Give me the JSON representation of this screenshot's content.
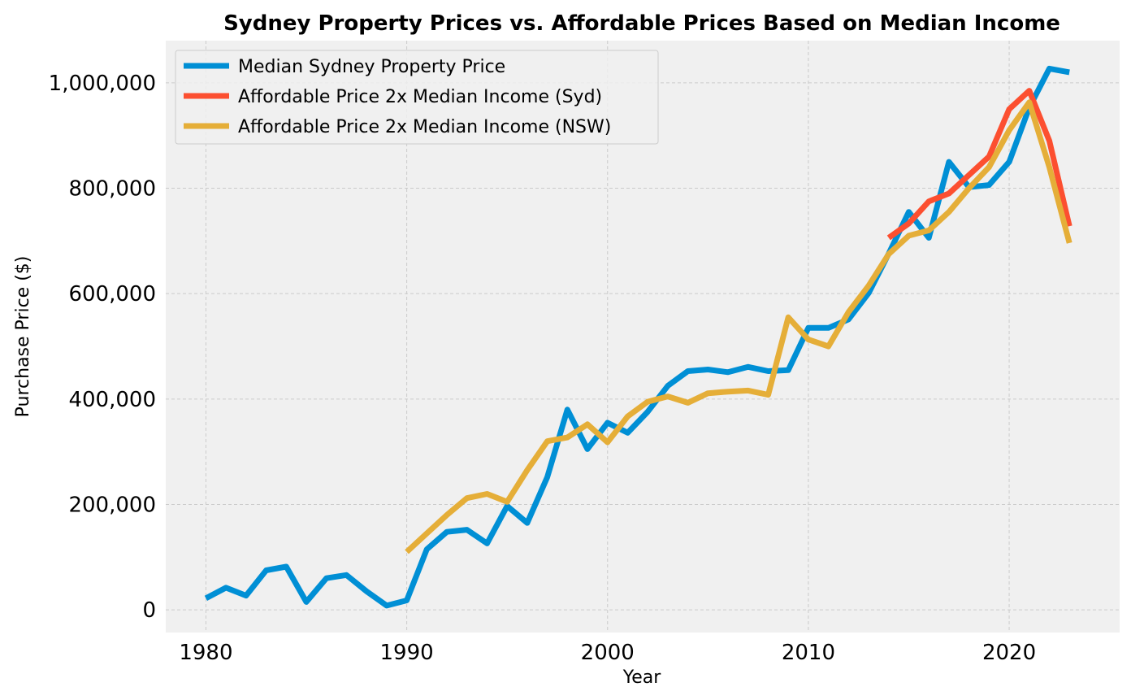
{
  "chart_data": {
    "type": "line",
    "title": "Sydney Property Prices vs. Affordable Prices Based on Median Income",
    "xlabel": "Year",
    "ylabel": "Purchase Price ($)",
    "xlim": [
      1978,
      2025.5
    ],
    "ylim": [
      -43000,
      1080000
    ],
    "xticks": [
      1980,
      1990,
      2000,
      2010,
      2020
    ],
    "xtick_labels": [
      "1980",
      "1990",
      "2000",
      "2010",
      "2020"
    ],
    "yticks": [
      0,
      200000,
      400000,
      600000,
      800000,
      1000000
    ],
    "ytick_labels": [
      "0",
      "200,000",
      "400,000",
      "600,000",
      "800,000",
      "1,000,000"
    ],
    "grid": true,
    "legend_position": "upper-left",
    "background_color": "#f0f0f0",
    "series": [
      {
        "name": "Median Sydney Property Price",
        "color": "#008fd5",
        "x": [
          1980,
          1981,
          1982,
          1983,
          1984,
          1985,
          1986,
          1987,
          1988,
          1989,
          1990,
          1991,
          1992,
          1993,
          1994,
          1995,
          1996,
          1997,
          1998,
          1999,
          2000,
          2001,
          2002,
          2003,
          2004,
          2005,
          2006,
          2007,
          2008,
          2009,
          2010,
          2011,
          2012,
          2013,
          2014,
          2015,
          2016,
          2017,
          2018,
          2019,
          2020,
          2021,
          2022,
          2023
        ],
        "y": [
          22000,
          42000,
          27000,
          75000,
          82000,
          15000,
          60000,
          66000,
          35000,
          8000,
          18000,
          115000,
          148000,
          152000,
          126000,
          197000,
          165000,
          252000,
          380000,
          305000,
          355000,
          336000,
          376000,
          425000,
          453000,
          456000,
          451000,
          461000,
          453000,
          455000,
          535000,
          535000,
          551000,
          601000,
          676000,
          755000,
          706000,
          850000,
          802000,
          806000,
          850000,
          953000,
          1027000,
          1020000
        ]
      },
      {
        "name": "Affordable Price 2x Median Income (Syd)",
        "color": "#fc4f30",
        "x": [
          2014,
          2015,
          2016,
          2017,
          2018,
          2019,
          2020,
          2021,
          2022,
          2023
        ],
        "y": [
          706000,
          733000,
          775000,
          790000,
          825000,
          860000,
          950000,
          985000,
          890000,
          728000
        ]
      },
      {
        "name": "Affordable Price 2x Median Income (NSW)",
        "color": "#e5ae38",
        "x": [
          1990,
          1991,
          1992,
          1993,
          1994,
          1995,
          1996,
          1997,
          1998,
          1999,
          2000,
          2001,
          2002,
          2003,
          2004,
          2005,
          2006,
          2007,
          2008,
          2009,
          2010,
          2011,
          2012,
          2013,
          2014,
          2015,
          2016,
          2017,
          2018,
          2019,
          2020,
          2021,
          2022,
          2023
        ],
        "y": [
          110000,
          145000,
          180000,
          212000,
          220000,
          205000,
          265000,
          320000,
          327000,
          352000,
          318000,
          367000,
          395000,
          405000,
          393000,
          411000,
          414000,
          416000,
          408000,
          555000,
          513000,
          500000,
          565000,
          615000,
          675000,
          710000,
          720000,
          755000,
          800000,
          840000,
          910000,
          963000,
          840000,
          696000
        ]
      }
    ]
  }
}
